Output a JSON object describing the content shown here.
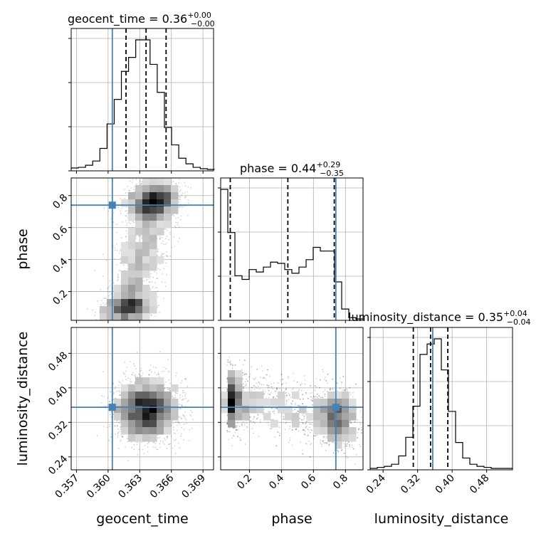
{
  "chart_data": {
    "type": "corner",
    "parameters": [
      "geocent_time",
      "phase",
      "luminosity_distance"
    ],
    "axis_labels": [
      "geocent_time",
      "phase",
      "luminosity_distance"
    ],
    "titles": [
      {
        "param": "geocent_time",
        "prefix": "geocent_time = 0.36",
        "sup": "+0.00",
        "sub": "−0.00"
      },
      {
        "param": "phase",
        "prefix": "phase = 0.44",
        "sup": "+0.29",
        "sub": "−0.35"
      },
      {
        "param": "luminosity_distance",
        "prefix": "luminosity_distance = 0.35",
        "sup": "+0.04",
        "sub": "−0.04"
      }
    ],
    "ranges": {
      "geocent_time": [
        0.3565,
        0.37
      ],
      "phase": [
        0.02,
        0.91
      ],
      "luminosity_distance": [
        0.21,
        0.54
      ]
    },
    "ticks": {
      "geocent_time": [
        "0.357",
        "0.360",
        "0.363",
        "0.366",
        "0.369"
      ],
      "phase": [
        "0.2",
        "0.4",
        "0.6",
        "0.8"
      ],
      "luminosity_distance": [
        "0.24",
        "0.32",
        "0.40",
        "0.48"
      ]
    },
    "tick_values": {
      "geocent_time": [
        0.357,
        0.36,
        0.363,
        0.366,
        0.369
      ],
      "phase": [
        0.2,
        0.4,
        0.6,
        0.8
      ],
      "luminosity_distance": [
        0.24,
        0.32,
        0.4,
        0.48
      ]
    },
    "truths": {
      "geocent_time": 0.3604,
      "phase": 0.74,
      "luminosity_distance": 0.355
    },
    "quantiles": {
      "geocent_time": [
        0.3617,
        0.3636,
        0.3655
      ],
      "phase": [
        0.08,
        0.44,
        0.73
      ],
      "luminosity_distance": [
        0.31,
        0.35,
        0.39
      ]
    },
    "histograms": {
      "geocent_time": {
        "edges_start": 0.3565,
        "bin_width": 0.00068,
        "counts": [
          2,
          3,
          6,
          12,
          30,
          65,
          100,
          140,
          160,
          185,
          185,
          150,
          110,
          60,
          35,
          16,
          8,
          3,
          1,
          0
        ]
      },
      "phase": {
        "edges_start": 0.02,
        "bin_width": 0.0445,
        "counts": [
          105,
          70,
          35,
          32,
          40,
          38,
          42,
          46,
          45,
          40,
          37,
          42,
          48,
          58,
          55,
          55,
          30,
          8,
          1,
          0
        ]
      },
      "luminosity_distance": {
        "edges_start": 0.21,
        "bin_width": 0.0165,
        "counts": [
          0,
          1,
          2,
          4,
          12,
          30,
          60,
          110,
          120,
          125,
          95,
          55,
          25,
          10,
          4,
          2,
          1,
          0,
          0,
          0
        ]
      }
    },
    "truth_color": "#4682b4",
    "line_color": "#000000",
    "grid": true
  }
}
